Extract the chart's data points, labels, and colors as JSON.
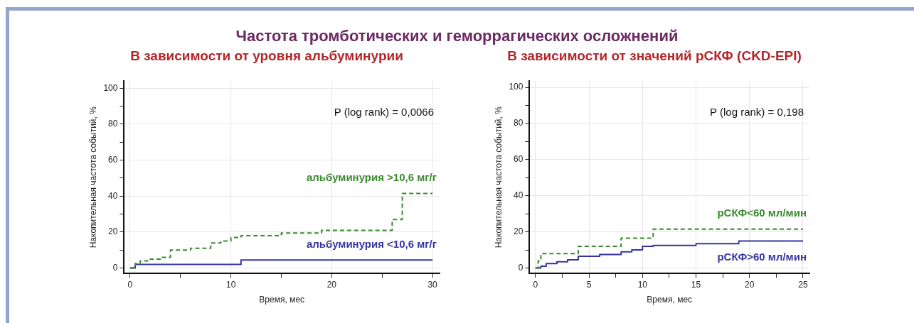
{
  "chart_data": [
    {
      "type": "step",
      "title": "Частота тромботических и геморрагических осложнений",
      "subtitle": "В зависимости от уровня альбуминурии",
      "xlabel": "Время, мес",
      "ylabel": "Накопительная частота событий, %",
      "xlim": [
        -0.6,
        30.7
      ],
      "ylim": [
        -3,
        104
      ],
      "xticks": [
        0,
        {
          "value": 5,
          "label": null
        },
        10,
        {
          "value": 15,
          "label": null
        },
        20,
        {
          "value": 25,
          "label": null
        },
        30
      ],
      "yticks": [
        0,
        {
          "value": 10,
          "label": null
        },
        20,
        {
          "value": 30,
          "label": null
        },
        40,
        {
          "value": 50,
          "label": null
        },
        60,
        {
          "value": 70,
          "label": null
        },
        80,
        {
          "value": 90,
          "label": null
        },
        100
      ],
      "grid": true,
      "legend": false,
      "annotations": [
        "P (log rank) = 0,0066"
      ],
      "series": [
        {
          "name": "альбуминурия >10,6 мг/г",
          "color": "#3a8a2e",
          "line_style": "dashed",
          "x": [
            0,
            0.5,
            1,
            2,
            3,
            4,
            6,
            8,
            9,
            10,
            11,
            15,
            19,
            26,
            27,
            30
          ],
          "values": [
            0,
            2.5,
            4,
            5,
            6,
            10,
            11,
            14,
            15,
            17,
            18,
            19.5,
            21,
            27,
            41.5,
            41.5
          ]
        },
        {
          "name": "альбуминурия <10,6 мг/г",
          "color": "#3535a0",
          "line_style": "solid",
          "x": [
            0,
            0.5,
            11,
            30
          ],
          "values": [
            0,
            2,
            4.5,
            4.5
          ]
        }
      ]
    },
    {
      "type": "step",
      "subtitle": "В зависимости от значений рСКФ (CKD-EPI)",
      "xlabel": "Время, мес",
      "ylabel": "Накопительная частота событий, %",
      "xlim": [
        -0.56,
        25.6
      ],
      "ylim": [
        -3,
        103.5
      ],
      "xticks": [
        0,
        {
          "value": 2.5,
          "label": null
        },
        5,
        {
          "value": 7.5,
          "label": null
        },
        10,
        {
          "value": 12.5,
          "label": null
        },
        15,
        {
          "value": 17.5,
          "label": null
        },
        20,
        {
          "value": 22.5,
          "label": null
        },
        25
      ],
      "yticks": [
        0,
        {
          "value": 10,
          "label": null
        },
        20,
        {
          "value": 30,
          "label": null
        },
        40,
        {
          "value": 50,
          "label": null
        },
        60,
        {
          "value": 70,
          "label": null
        },
        80,
        {
          "value": 90,
          "label": null
        },
        100
      ],
      "grid": true,
      "legend": false,
      "annotations": [
        "P (log rank) = 0,198"
      ],
      "series": [
        {
          "name": "рСКФ<60 мл/мин",
          "color": "#3a8a2e",
          "line_style": "dashed",
          "x": [
            0,
            0.25,
            0.5,
            4,
            8,
            11,
            25
          ],
          "values": [
            0,
            4,
            8,
            12,
            16.5,
            21.5,
            21.5
          ]
        },
        {
          "name": "рСКФ>60 мл/мин",
          "color": "#3535a0",
          "line_style": "solid",
          "x": [
            0,
            0.5,
            1,
            2,
            3,
            4,
            6,
            8,
            9,
            10,
            11,
            15,
            19,
            25
          ],
          "values": [
            0,
            1,
            2.5,
            3.5,
            4.5,
            6.5,
            7.5,
            9,
            10,
            12,
            12.5,
            13.5,
            15,
            15
          ]
        }
      ]
    }
  ]
}
